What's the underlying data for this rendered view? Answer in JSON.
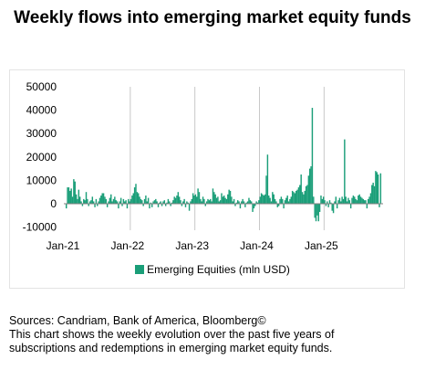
{
  "title": "Weekly flows into emerging market equity funds",
  "legend_label": "Emerging Equities  (mln USD)",
  "sources": "Sources: Candriam, Bank of America, Bloomberg©",
  "description_line1": "This chart shows the weekly evolution over the past five years of",
  "description_line2": "subscriptions and redemptions in emerging market equity funds.",
  "colors": {
    "bar": "#1a9e78",
    "gridline": "#c8c8c8",
    "axis": "#808080"
  },
  "chart_data": {
    "type": "bar",
    "title": "Weekly flows into emerging market equity funds",
    "xlabel": "",
    "ylabel": "",
    "ylim": [
      -10000,
      50000
    ],
    "yticks": [
      -10000,
      0,
      10000,
      20000,
      30000,
      40000,
      50000
    ],
    "ytick_labels": [
      "-10000",
      "0",
      "10000",
      "20000",
      "30000",
      "40000",
      "50000"
    ],
    "xtick_labels": [
      "Jan-21",
      "Jan-22",
      "Jan-23",
      "Jan-24",
      "Jan-25"
    ],
    "xtick_week_index": [
      0,
      52,
      104,
      156,
      208
    ],
    "vertical_gridlines": true,
    "horizontal_gridlines": false,
    "legend_position": "bottom",
    "series": [
      {
        "name": "Emerging Equities  (mln USD)",
        "values": [
          -2000,
          7000,
          7000,
          5500,
          6500,
          3000,
          10500,
          9500,
          4000,
          2000,
          6000,
          3000,
          1000,
          -1000,
          2000,
          1500,
          5000,
          2000,
          -1000,
          1000,
          1500,
          3000,
          1000,
          -1500,
          2000,
          -1000,
          1000,
          2500,
          3500,
          4500,
          4500,
          3000,
          2000,
          -1500,
          1000,
          2500,
          4000,
          1000,
          2000,
          3000,
          1500,
          1000,
          -2000,
          1000,
          2500,
          -1000,
          2000,
          1000,
          1500,
          -2000,
          2000,
          1000,
          2000,
          3500,
          4500,
          7000,
          8500,
          5000,
          4500,
          3000,
          2000,
          1500,
          -1000,
          2000,
          3500,
          1000,
          2500,
          -2000,
          500,
          -1500,
          1000,
          1500,
          2000,
          1000,
          -1500,
          500,
          1000,
          -1000,
          1000,
          1500,
          -1000,
          500,
          2000,
          1000,
          -1000,
          500,
          1500,
          3000,
          2500,
          3500,
          5000,
          3000,
          1500,
          -1000,
          1000,
          2000,
          -1500,
          1000,
          500,
          -3000,
          1000,
          2000,
          4500,
          3500,
          4000,
          3000,
          6500,
          5000,
          2000,
          1000,
          3000,
          2000,
          -1000,
          1000,
          2000,
          1500,
          2000,
          1000,
          6500,
          5000,
          4000,
          2500,
          3000,
          1000,
          1500,
          4500,
          3000,
          3500,
          2500,
          2000,
          4000,
          6000,
          5500,
          3000,
          1000,
          2000,
          -1000,
          500,
          1500,
          1000,
          -2000,
          1000,
          2000,
          1000,
          -1500,
          500,
          1000,
          2500,
          1500,
          1000,
          -3500,
          -2000,
          -1000,
          1000,
          500,
          1500,
          3000,
          4500,
          4000,
          3500,
          4000,
          12000,
          21000,
          3500,
          2500,
          1000,
          5000,
          4000,
          2000,
          1000,
          -1500,
          -1000,
          2000,
          3000,
          2000,
          -2000,
          1500,
          2500,
          3500,
          1000,
          2000,
          3000,
          5500,
          5000,
          4500,
          5500,
          6000,
          7000,
          8000,
          12500,
          5000,
          4000,
          5500,
          7500,
          8000,
          12000,
          15000,
          16000,
          41000,
          3000,
          -6000,
          -7500,
          -5000,
          -7500,
          -3500,
          3500,
          2000,
          3000,
          1500,
          -1000,
          1000,
          -1500,
          1500,
          500,
          -3000,
          -4000,
          1000,
          3000,
          -2000,
          1500,
          2500,
          1000,
          3000,
          2000,
          27500,
          3000,
          1000,
          2500,
          1500,
          -2000,
          2500,
          3500,
          3000,
          2000,
          1500,
          3500,
          4000,
          3000,
          2500,
          2000,
          1500,
          1500,
          -2000,
          2000,
          3000,
          4500,
          8000,
          9000,
          7500,
          14000,
          13500,
          12500,
          -1500,
          13000
        ]
      }
    ]
  }
}
